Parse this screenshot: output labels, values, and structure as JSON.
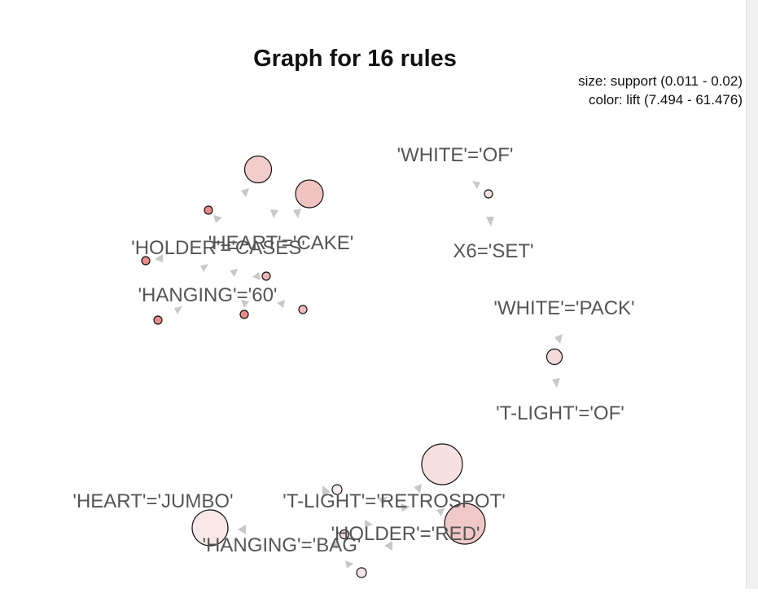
{
  "title": "Graph for 16 rules",
  "legend": {
    "size": "size: support (0.011 - 0.02)",
    "color": "color: lift (7.494 - 61.476)"
  },
  "labels": {
    "white_of": "'WHITE'='OF'",
    "x6_set": "X6='SET'",
    "heart_cake": "'HEART'='CAKE'",
    "holder_cases": "'HOLDER'='CASES'",
    "hanging_60": "'HANGING'='60'",
    "white_pack": "'WHITE'='PACK'",
    "tlight_of": "'T-LIGHT'='OF'",
    "heart_jumbo": "'HEART'='JUMBO'",
    "tlight_retrospot": "'T-LIGHT'='RETROSPOT'",
    "holder_red": "'HOLDER'='RED'",
    "hanging_bag": "'HANGING'='BAG'"
  },
  "colors": {
    "background": "#ffffff",
    "label": "#555555",
    "edge_arrow": "#c8c8c8",
    "lift_low": "#f7e4e4",
    "lift_mid": "#f2c6c6",
    "lift_high": "#e88a8a"
  }
}
